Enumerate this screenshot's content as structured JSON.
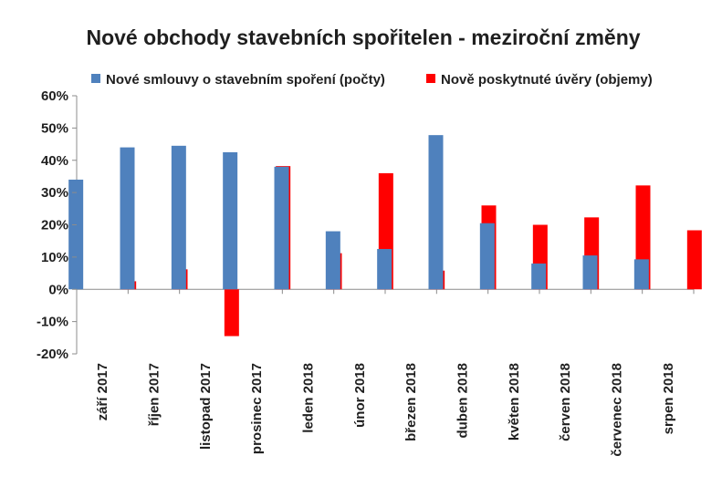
{
  "chart_data": {
    "type": "bar",
    "title": "Nové obchody stavebních spořitelen - meziroční změny",
    "categories": [
      "září 2017",
      "říjen 2017",
      "listopad 2017",
      "prosinec 2017",
      "leden 2018",
      "únor 2018",
      "březen 2018",
      "duben 2018",
      "květen 2018",
      "červen 2018",
      "červenec 2018",
      "srpen 2018"
    ],
    "series": [
      {
        "name": "Nové smlouvy o stavebním spoření (počty)",
        "color": "#4f81bd",
        "values": [
          34,
          44,
          44.5,
          42.5,
          38,
          18,
          12.5,
          47.8,
          20.5,
          8,
          10.5,
          9.3
        ]
      },
      {
        "name": "Nově poskytnuté úvěry (objemy)",
        "color": "#ff0000",
        "values": [
          2.5,
          6.2,
          -14.5,
          38.2,
          11.2,
          36,
          5.8,
          26,
          20,
          22.3,
          32.2,
          18.3
        ]
      }
    ],
    "ylim": [
      -20,
      60
    ],
    "yticks": [
      -20,
      -10,
      0,
      10,
      20,
      30,
      40,
      50,
      60
    ],
    "ytick_labels": [
      "-20%",
      "-10%",
      "0%",
      "10%",
      "20%",
      "30%",
      "40%",
      "50%",
      "60%"
    ],
    "xlabel": "",
    "ylabel": "",
    "grid": false,
    "legend": "top"
  }
}
